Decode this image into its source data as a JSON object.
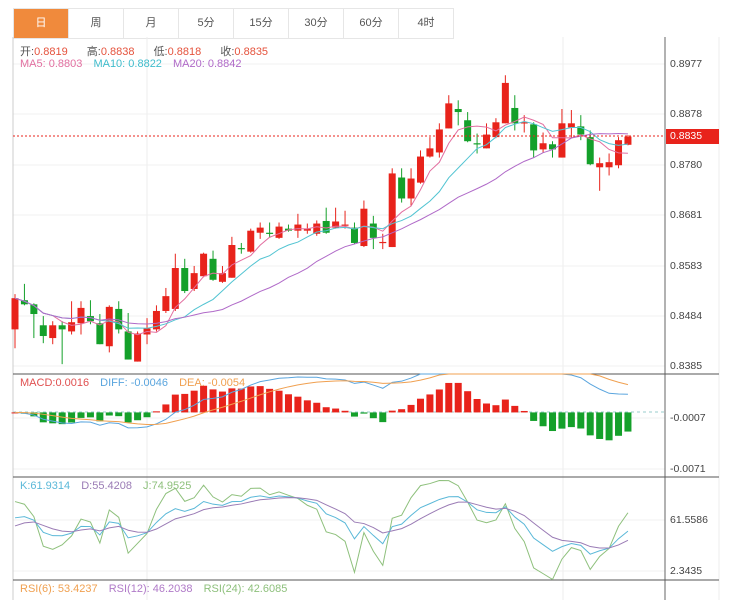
{
  "tabs": [
    "日",
    "周",
    "月",
    "5分",
    "15分",
    "30分",
    "60分",
    "4时"
  ],
  "active_tab": 0,
  "ohlc_info": {
    "open_label": "开:",
    "open": "0.8819",
    "high_label": "高:",
    "high": "0.8838",
    "low_label": "低:",
    "low": "0.8818",
    "close_label": "收:",
    "close": "0.8835"
  },
  "ma_info": {
    "ma5": "MA5: 0.8803",
    "ma10": "MA10: 0.8822",
    "ma20": "MA20: 0.8842"
  },
  "macd_info": {
    "macd": "MACD:0.0016",
    "diff": "DIFF: -0.0046",
    "dea": "DEA: -0.0054"
  },
  "kdj_info": {
    "k": "K:61.9314",
    "d": "D:55.4208",
    "j": "J:74.9525"
  },
  "rsi_info": {
    "rsi6": "RSI(6): 53.4237",
    "rsi12": "RSI(12): 46.2038",
    "rsi24": "RSI(24): 42.6085"
  },
  "price_axis": [
    "0.8977",
    "0.8878",
    "0.8780",
    "0.8681",
    "0.8583",
    "0.8484",
    "0.8385"
  ],
  "macd_axis": [
    "-0.0007",
    "-0.0071"
  ],
  "kdj_axis": [
    "61.5586",
    "2.3435"
  ],
  "last_price": "0.8835",
  "colors": {
    "up": "#e8231b",
    "down": "#14a02a",
    "ma5": "#e26fa0",
    "ma10": "#52c4d2",
    "ma20": "#b06ac8",
    "accent": "#f08a3c"
  },
  "chart_data": {
    "type": "candlestick",
    "ylim": [
      0.8385,
      0.8977
    ],
    "macd_ylim": [
      -0.0079,
      0.0047
    ],
    "kdj_ylim": [
      -8,
      111.5
    ],
    "candles": [
      [
        0.8458,
        0.8527,
        0.8421,
        0.8519
      ],
      [
        0.8515,
        0.8547,
        0.8505,
        0.8507
      ],
      [
        0.8507,
        0.8509,
        0.8441,
        0.8488
      ],
      [
        0.8466,
        0.8484,
        0.8431,
        0.8445
      ],
      [
        0.8441,
        0.8474,
        0.8429,
        0.8466
      ],
      [
        0.8466,
        0.8474,
        0.839,
        0.8458
      ],
      [
        0.8454,
        0.8513,
        0.8448,
        0.8472
      ],
      [
        0.847,
        0.8513,
        0.8448,
        0.85
      ],
      [
        0.8484,
        0.8515,
        0.8468,
        0.8474
      ],
      [
        0.847,
        0.8488,
        0.8429,
        0.8429
      ],
      [
        0.8425,
        0.8505,
        0.8413,
        0.8502
      ],
      [
        0.8498,
        0.8513,
        0.845,
        0.8458
      ],
      [
        0.8454,
        0.849,
        0.8399,
        0.8399
      ],
      [
        0.8395,
        0.8454,
        0.8395,
        0.845
      ],
      [
        0.8448,
        0.848,
        0.8429,
        0.846
      ],
      [
        0.8458,
        0.8505,
        0.8454,
        0.8494
      ],
      [
        0.8494,
        0.8539,
        0.849,
        0.8523
      ],
      [
        0.8498,
        0.8606,
        0.8494,
        0.8578
      ],
      [
        0.8578,
        0.8596,
        0.8529,
        0.8533
      ],
      [
        0.8537,
        0.8582,
        0.8533,
        0.8568
      ],
      [
        0.8562,
        0.8608,
        0.856,
        0.8606
      ],
      [
        0.8596,
        0.8612,
        0.8553,
        0.8555
      ],
      [
        0.8551,
        0.8582,
        0.8549,
        0.8568
      ],
      [
        0.8559,
        0.8639,
        0.8559,
        0.8623
      ],
      [
        0.8617,
        0.8627,
        0.8606,
        0.8615
      ],
      [
        0.861,
        0.8655,
        0.8608,
        0.8651
      ],
      [
        0.8647,
        0.8667,
        0.8635,
        0.8657
      ],
      [
        0.8647,
        0.8667,
        0.8637,
        0.8645
      ],
      [
        0.8637,
        0.8667,
        0.8635,
        0.8659
      ],
      [
        0.8655,
        0.8663,
        0.8649,
        0.8651
      ],
      [
        0.8651,
        0.8684,
        0.8637,
        0.8663
      ],
      [
        0.8651,
        0.8665,
        0.8645,
        0.8655
      ],
      [
        0.8645,
        0.8671,
        0.8641,
        0.8665
      ],
      [
        0.867,
        0.8696,
        0.8645,
        0.8647
      ],
      [
        0.8657,
        0.8696,
        0.8655,
        0.8669
      ],
      [
        0.8661,
        0.869,
        0.8655,
        0.8663
      ],
      [
        0.8657,
        0.8667,
        0.8625,
        0.8627
      ],
      [
        0.8621,
        0.871,
        0.8619,
        0.8694
      ],
      [
        0.8665,
        0.868,
        0.8615,
        0.8637
      ],
      [
        0.8627,
        0.8645,
        0.8615,
        0.8629
      ],
      [
        0.8619,
        0.8773,
        0.8619,
        0.8763
      ],
      [
        0.8755,
        0.8773,
        0.8706,
        0.8714
      ],
      [
        0.8714,
        0.8773,
        0.87,
        0.8753
      ],
      [
        0.8745,
        0.8808,
        0.8743,
        0.8796
      ],
      [
        0.8796,
        0.8834,
        0.8794,
        0.8812
      ],
      [
        0.8804,
        0.8861,
        0.8794,
        0.8849
      ],
      [
        0.8851,
        0.8916,
        0.8851,
        0.89
      ],
      [
        0.8889,
        0.8906,
        0.8857,
        0.8883
      ],
      [
        0.8867,
        0.8883,
        0.8824,
        0.8826
      ],
      [
        0.8822,
        0.8841,
        0.8802,
        0.882
      ],
      [
        0.8812,
        0.8861,
        0.8812,
        0.8839
      ],
      [
        0.8834,
        0.8871,
        0.8832,
        0.8863
      ],
      [
        0.8861,
        0.8955,
        0.8861,
        0.894
      ],
      [
        0.8891,
        0.8916,
        0.8847,
        0.8861
      ],
      [
        0.8861,
        0.8877,
        0.8843,
        0.8863
      ],
      [
        0.8859,
        0.8863,
        0.8794,
        0.8808
      ],
      [
        0.881,
        0.8843,
        0.8804,
        0.8822
      ],
      [
        0.882,
        0.8826,
        0.8794,
        0.881
      ],
      [
        0.8794,
        0.8889,
        0.8794,
        0.8861
      ],
      [
        0.8853,
        0.8887,
        0.8832,
        0.8861
      ],
      [
        0.8855,
        0.8877,
        0.8828,
        0.8839
      ],
      [
        0.8834,
        0.8847,
        0.8779,
        0.8781
      ],
      [
        0.8775,
        0.8794,
        0.8729,
        0.8783
      ],
      [
        0.8775,
        0.8802,
        0.8759,
        0.8785
      ],
      [
        0.8779,
        0.8834,
        0.8773,
        0.8828
      ],
      [
        0.8819,
        0.8838,
        0.8818,
        0.8835
      ]
    ]
  }
}
